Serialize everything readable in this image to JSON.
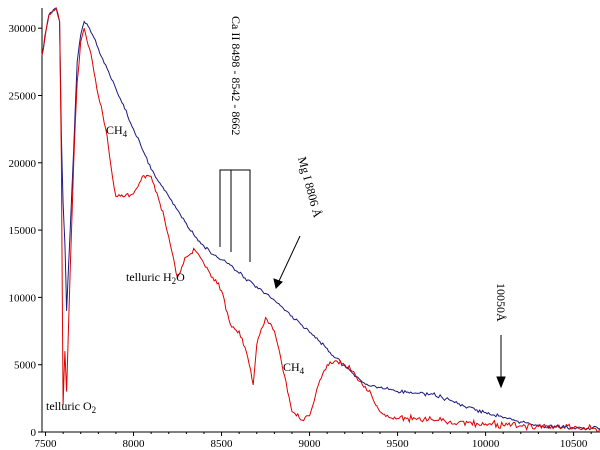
{
  "chart_data": {
    "type": "line",
    "title": "",
    "xlabel": "",
    "ylabel": "",
    "xlim": [
      7480,
      10650
    ],
    "ylim": [
      0,
      31500
    ],
    "grid": false,
    "x_ticks": [
      7500,
      8000,
      8500,
      9000,
      9500,
      10000,
      10500
    ],
    "y_ticks": [
      0,
      5000,
      10000,
      15000,
      20000,
      25000,
      30000
    ],
    "series": [
      {
        "color": "#1a1a80",
        "x": [
          7480,
          7520,
          7560,
          7580,
          7590,
          7600,
          7610,
          7620,
          7640,
          7660,
          7680,
          7700,
          7720,
          7750,
          7800,
          7850,
          7900,
          7950,
          8000,
          8050,
          8100,
          8150,
          8200,
          8250,
          8300,
          8350,
          8400,
          8450,
          8500,
          8550,
          8600,
          8650,
          8700,
          8750,
          8800,
          8850,
          8900,
          8950,
          9000,
          9050,
          9100,
          9150,
          9200,
          9250,
          9300,
          9350,
          9400,
          9450,
          9500,
          9550,
          9600,
          9650,
          9700,
          9750,
          9800,
          9850,
          9900,
          9950,
          10000,
          10050,
          10100,
          10150,
          10200,
          10250,
          10300,
          10350,
          10400,
          10450,
          10500,
          10550,
          10600,
          10650
        ],
        "y": [
          28000,
          31000,
          31500,
          30500,
          22000,
          17000,
          14000,
          9000,
          15000,
          21000,
          27500,
          29500,
          30500,
          30000,
          28500,
          27000,
          25500,
          24000,
          22500,
          21000,
          19500,
          18500,
          17500,
          16500,
          15500,
          14500,
          13800,
          13200,
          12800,
          12400,
          11800,
          11300,
          10800,
          10300,
          9800,
          9200,
          8600,
          8000,
          7400,
          6800,
          6200,
          5500,
          4900,
          4300,
          3700,
          3400,
          3300,
          3150,
          3000,
          2950,
          2900,
          2850,
          2800,
          2600,
          2350,
          2100,
          1850,
          1650,
          1450,
          1250,
          1050,
          900,
          750,
          620,
          520,
          450,
          400,
          350,
          300,
          280,
          260,
          250
        ]
      },
      {
        "color": "#e00000",
        "x": [
          7480,
          7520,
          7560,
          7580,
          7590,
          7600,
          7610,
          7620,
          7640,
          7660,
          7680,
          7700,
          7720,
          7750,
          7800,
          7850,
          7880,
          7900,
          7950,
          8000,
          8050,
          8100,
          8150,
          8200,
          8250,
          8300,
          8350,
          8400,
          8450,
          8500,
          8550,
          8600,
          8650,
          8680,
          8700,
          8750,
          8800,
          8850,
          8900,
          8950,
          9000,
          9050,
          9100,
          9150,
          9200,
          9250,
          9300,
          9350,
          9400,
          9450,
          9500,
          9550,
          9600,
          9650,
          9700,
          9750,
          9800,
          9850,
          9900,
          9950,
          10000,
          10100,
          10200,
          10300,
          10400,
          10500,
          10600,
          10650
        ],
        "y": [
          28000,
          31000,
          31500,
          30500,
          20000,
          2000,
          6000,
          3000,
          12000,
          20000,
          26000,
          29000,
          30000,
          28500,
          25000,
          22000,
          19000,
          17500,
          17500,
          17700,
          19000,
          19000,
          17000,
          14500,
          11500,
          13000,
          13500,
          12500,
          11500,
          10500,
          8000,
          7500,
          5500,
          3500,
          6500,
          8500,
          7500,
          4500,
          1500,
          900,
          1200,
          3500,
          5000,
          5300,
          5000,
          4500,
          3500,
          2800,
          1500,
          1100,
          1000,
          1000,
          1000,
          950,
          900,
          850,
          800,
          750,
          700,
          650,
          600,
          500,
          450,
          400,
          350,
          300,
          270,
          250
        ]
      }
    ],
    "annotations": {
      "ch4_upper": "CH",
      "ch4_upper_sub": "4",
      "cail": "Ca II 8498 - 8542 - 8662",
      "mgi": "Mg I 8806 Å",
      "telluric_h2o_a": "telluric H",
      "telluric_h2o_sub": "2",
      "telluric_h2o_b": "O",
      "ch4_lower": "CH",
      "ch4_lower_sub": "4",
      "telluric_o2_a": "telluric O",
      "telluric_o2_sub": "2",
      "wl10050": "10050Å"
    }
  }
}
